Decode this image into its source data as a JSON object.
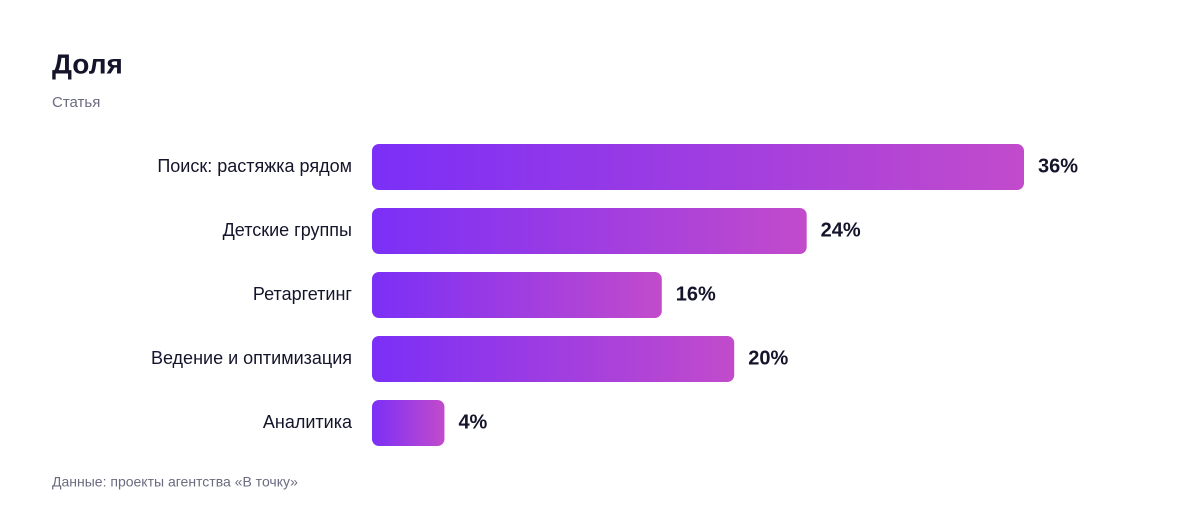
{
  "chart_data": {
    "type": "bar",
    "orientation": "horizontal",
    "title": "Доля",
    "subtitle": "Статья",
    "categories": [
      "Поиск: растяжка рядом",
      "Детские группы",
      "Ретаргетинг",
      "Ведение и оптимизация",
      "Аналитика"
    ],
    "values": [
      36,
      24,
      16,
      20,
      4
    ],
    "value_labels": [
      "36%",
      "24%",
      "16%",
      "20%",
      "4%"
    ],
    "colors": [
      "#7b2ff7",
      "#c24bcb"
    ],
    "source": "Данные: проекты агентства «В точку»"
  }
}
